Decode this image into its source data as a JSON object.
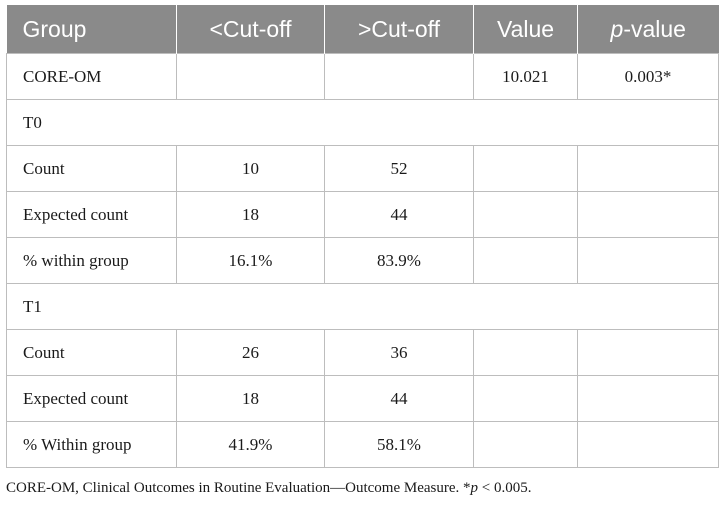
{
  "table": {
    "headers": [
      "Group",
      "<Cut-off",
      ">Cut-off",
      "Value",
      "p",
      "-value"
    ],
    "rows": {
      "core_om": {
        "label": "CORE-OM",
        "below": "",
        "above": "",
        "value": "10.021",
        "p": "0.003*"
      },
      "t0_header": {
        "label": "T0"
      },
      "t0_count": {
        "label": "Count",
        "below": "10",
        "above": "52"
      },
      "t0_expected": {
        "label": "Expected count",
        "below": "18",
        "above": "44"
      },
      "t0_pct": {
        "label": "% within group",
        "below": "16.1%",
        "above": "83.9%"
      },
      "t1_header": {
        "label": "T1"
      },
      "t1_count": {
        "label": "Count",
        "below": "26",
        "above": "36"
      },
      "t1_expected": {
        "label": "Expected count",
        "below": "18",
        "above": "44"
      },
      "t1_pct": {
        "label": "% Within group",
        "below": "41.9%",
        "above": "58.1%"
      }
    }
  },
  "footnote": {
    "text": "CORE-OM, Clinical Outcomes in Routine Evaluation—Outcome Measure. *",
    "p": "p",
    "tail": " < 0.005."
  }
}
